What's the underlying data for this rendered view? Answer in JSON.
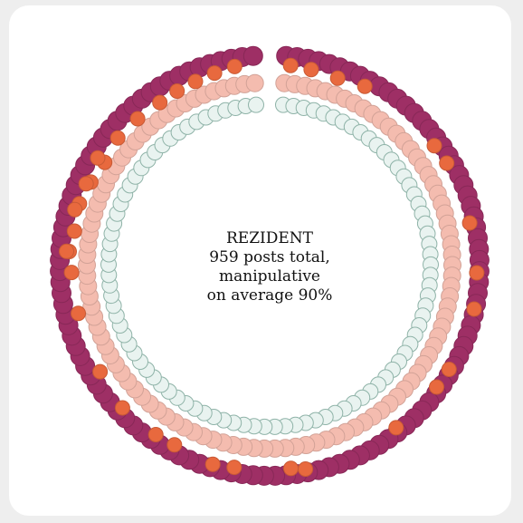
{
  "chart_data": {
    "type": "radial-dot",
    "title": "REZIDENT",
    "center_lines": [
      "REZIDENT",
      "959 posts total,",
      "manipulative",
      "on average 90%"
    ],
    "rings": [
      {
        "ring": "outer",
        "color": "#9e2f65"
      },
      {
        "ring": "third",
        "color": "#e8693e"
      },
      {
        "ring": "second",
        "color": "#f4bcaf"
      },
      {
        "ring": "inner",
        "color": "#e9f3f0"
      }
    ]
  }
}
